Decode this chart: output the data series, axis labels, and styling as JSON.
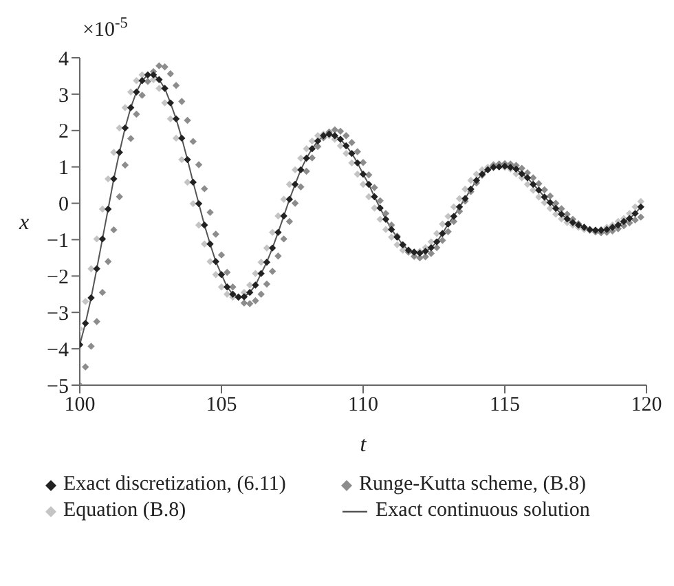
{
  "chart_data": {
    "type": "scatter",
    "xlabel": "t",
    "ylabel": "x",
    "annotations": [
      "×10$^{-5}$"
    ],
    "x": [
      100,
      100.2,
      100.4,
      100.6,
      100.8,
      101,
      101.2,
      101.4,
      101.6,
      101.8,
      102,
      102.2,
      102.4,
      102.6,
      102.8,
      103,
      103.2,
      103.4,
      103.6,
      103.8,
      104,
      104.2,
      104.4,
      104.6,
      104.8,
      105,
      105.2,
      105.4,
      105.6,
      105.8,
      106,
      106.2,
      106.4,
      106.6,
      106.8,
      107,
      107.2,
      107.4,
      107.6,
      107.8,
      108,
      108.2,
      108.4,
      108.6,
      108.8,
      109,
      109.2,
      109.4,
      109.6,
      109.8,
      110,
      110.2,
      110.4,
      110.6,
      110.8,
      111,
      111.2,
      111.4,
      111.6,
      111.8,
      112,
      112.2,
      112.4,
      112.6,
      112.8,
      113,
      113.2,
      113.4,
      113.6,
      113.8,
      114,
      114.2,
      114.4,
      114.6,
      114.8,
      115,
      115.2,
      115.4,
      115.6,
      115.8,
      116,
      116.2,
      116.4,
      116.6,
      116.8,
      117,
      117.2,
      117.4,
      117.6,
      117.8,
      118,
      118.2,
      118.4,
      118.6,
      118.8,
      119,
      119.2,
      119.4,
      119.6,
      119.8
    ],
    "series": [
      {
        "name": "Exact discretization, (6.11)",
        "color": "#222222",
        "values": [
          -3.89,
          -3.3,
          -2.6,
          -1.8,
          -0.98,
          -0.16,
          0.67,
          1.4,
          2.07,
          2.63,
          3.06,
          3.37,
          3.53,
          3.53,
          3.4,
          3.16,
          2.76,
          2.32,
          1.79,
          1.2,
          0.58,
          -0.01,
          -0.6,
          -1.12,
          -1.6,
          -1.96,
          -2.3,
          -2.5,
          -2.58,
          -2.57,
          -2.45,
          -2.25,
          -1.93,
          -1.62,
          -1.23,
          -0.8,
          -0.35,
          0.11,
          0.52,
          0.92,
          1.24,
          1.5,
          1.71,
          1.86,
          1.9,
          1.86,
          1.76,
          1.58,
          1.37,
          1.11,
          0.8,
          0.52,
          0.18,
          -0.13,
          -0.44,
          -0.72,
          -0.93,
          -1.14,
          -1.29,
          -1.34,
          -1.37,
          -1.32,
          -1.22,
          -1.06,
          -0.83,
          -0.57,
          -0.36,
          -0.1,
          0.13,
          0.39,
          0.63,
          0.8,
          0.92,
          0.99,
          1,
          1.02,
          0.99,
          0.94,
          0.81,
          0.7,
          0.52,
          0.36,
          0.17,
          0.02,
          -0.14,
          -0.3,
          -0.43,
          -0.53,
          -0.6,
          -0.66,
          -0.72,
          -0.74,
          -0.74,
          -0.72,
          -0.66,
          -0.6,
          -0.5,
          -0.42,
          -0.28,
          -0.1
        ]
      },
      {
        "name": "Runge-Kutta scheme, (B.8)",
        "color": "#8c8c8c",
        "values": [
          -5,
          -4.5,
          -3.93,
          -3.25,
          -2.45,
          -1.6,
          -0.73,
          0.18,
          1.05,
          1.78,
          2.45,
          2.97,
          3.35,
          3.62,
          3.78,
          3.75,
          3.56,
          3.24,
          2.8,
          2.28,
          1.7,
          1.06,
          0.4,
          -0.25,
          -0.85,
          -1.42,
          -1.9,
          -2.3,
          -2.58,
          -2.74,
          -2.76,
          -2.68,
          -2.5,
          -2.22,
          -1.87,
          -1.45,
          -0.98,
          -0.5,
          0,
          0.45,
          0.88,
          1.25,
          1.56,
          1.8,
          1.96,
          2.02,
          1.98,
          1.86,
          1.67,
          1.42,
          1.12,
          0.78,
          0.43,
          0.07,
          -0.28,
          -0.6,
          -0.9,
          -1.15,
          -1.34,
          -1.46,
          -1.5,
          -1.47,
          -1.38,
          -1.22,
          -1.02,
          -0.78,
          -0.5,
          -0.22,
          0.06,
          0.32,
          0.56,
          0.77,
          0.93,
          1.04,
          1.08,
          1.09,
          1.08,
          1.04,
          0.96,
          0.84,
          0.7,
          0.54,
          0.37,
          0.2,
          0,
          -0.15,
          -0.3,
          -0.44,
          -0.56,
          -0.66,
          -0.74,
          -0.79,
          -0.81,
          -0.8,
          -0.76,
          -0.7,
          -0.62,
          -0.54,
          -0.46,
          -0.38
        ]
      },
      {
        "name": "Equation (B.8)",
        "color": "#c4c4c4",
        "values": [
          -3.45,
          -2.7,
          -1.8,
          -0.98,
          -0.16,
          0.67,
          1.4,
          2.07,
          2.63,
          3.06,
          3.37,
          3.53,
          3.53,
          3.4,
          3.16,
          2.76,
          2.32,
          1.79,
          1.2,
          0.58,
          -0.01,
          -0.6,
          -1.12,
          -1.6,
          -1.96,
          -2.3,
          -2.5,
          -2.58,
          -2.57,
          -2.45,
          -2.25,
          -1.93,
          -1.62,
          -1.23,
          -0.8,
          -0.35,
          0.11,
          0.52,
          0.92,
          1.24,
          1.5,
          1.71,
          1.86,
          1.9,
          1.86,
          1.76,
          1.58,
          1.37,
          1.11,
          0.8,
          0.52,
          0.18,
          -0.13,
          -0.44,
          -0.72,
          -0.93,
          -1.14,
          -1.29,
          -1.34,
          -1.37,
          -1.32,
          -1.22,
          -1.06,
          -0.83,
          -0.57,
          -0.36,
          -0.1,
          0.13,
          0.39,
          0.63,
          0.8,
          0.92,
          0.99,
          1.07,
          1.08,
          0.99,
          0.94,
          0.81,
          0.7,
          0.52,
          0.36,
          0.17,
          0.02,
          -0.14,
          -0.3,
          -0.43,
          -0.53,
          -0.6,
          -0.66,
          -0.72,
          -0.74,
          -0.74,
          -0.72,
          -0.66,
          -0.6,
          -0.5,
          -0.42,
          -0.28,
          -0.1,
          0.05
        ]
      },
      {
        "name": "Exact continuous solution",
        "type": "line",
        "marker": "none",
        "color": "#555555",
        "values": [
          -3.89,
          -3.3,
          -2.6,
          -1.8,
          -0.98,
          -0.16,
          0.67,
          1.4,
          2.07,
          2.63,
          3.06,
          3.37,
          3.53,
          3.53,
          3.4,
          3.16,
          2.76,
          2.32,
          1.79,
          1.2,
          0.58,
          -0.01,
          -0.6,
          -1.12,
          -1.6,
          -1.96,
          -2.3,
          -2.5,
          -2.58,
          -2.57,
          -2.45,
          -2.25,
          -1.93,
          -1.62,
          -1.23,
          -0.8,
          -0.35,
          0.11,
          0.52,
          0.92,
          1.24,
          1.5,
          1.71,
          1.86,
          1.9,
          1.86,
          1.76,
          1.58,
          1.37,
          1.11,
          0.8,
          0.52,
          0.18,
          -0.13,
          -0.44,
          -0.72,
          -0.93,
          -1.14,
          -1.29,
          -1.34,
          -1.37,
          -1.32,
          -1.22,
          -1.06,
          -0.83,
          -0.57,
          -0.36,
          -0.1,
          0.13,
          0.39,
          0.63,
          0.8,
          0.92,
          0.99,
          1,
          1.02,
          0.99,
          0.94,
          0.81,
          0.7,
          0.52,
          0.36,
          0.17,
          0.02,
          -0.14,
          -0.3,
          -0.43,
          -0.53,
          -0.6,
          -0.66,
          -0.72,
          -0.74,
          -0.74,
          -0.72,
          -0.66,
          -0.6,
          -0.5,
          -0.42,
          -0.28,
          -0.1
        ]
      }
    ],
    "marker": "diamond",
    "xlim": [
      100,
      120
    ],
    "xticks": [
      100,
      105,
      110,
      115,
      120
    ],
    "ylim": [
      -5,
      4
    ],
    "yticks": [
      -5,
      -4,
      -3,
      -2,
      -1,
      0,
      1,
      2,
      3,
      4
    ],
    "grid": false,
    "legend": "bottom"
  }
}
